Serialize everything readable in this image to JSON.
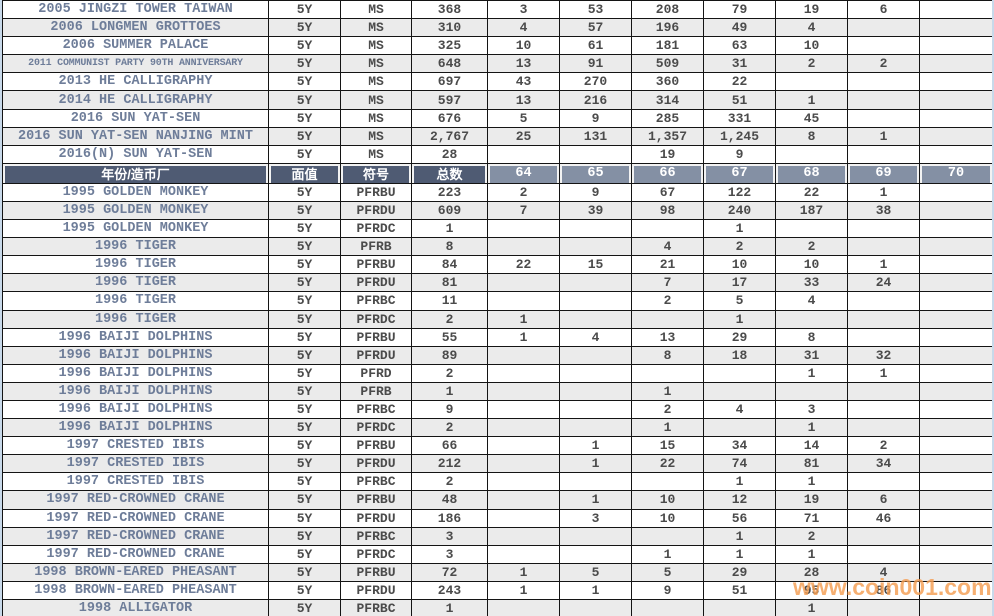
{
  "colors": {
    "header_dark_bg": "#4f5b73",
    "header_grade_bg": "#8490a4",
    "row_alt_bg": "#ebebeb",
    "name_text": "#6e7d99",
    "number_text": "#4b4b4b",
    "border": "#141414",
    "edge_strip": "#c8d9ea",
    "watermark_color": "#f59e53"
  },
  "watermark": {
    "text": "www.coin001.com"
  },
  "table": {
    "columns": [
      "年份/造币厂",
      "面值",
      "符号",
      "总数",
      "64",
      "65",
      "66",
      "67",
      "68",
      "69",
      "70"
    ],
    "top_rows": [
      {
        "name": "2005 JINGZI TOWER TAIWAN",
        "denomination": "5Y",
        "symbol": "MS",
        "total": "368",
        "grades": [
          "3",
          "53",
          "208",
          "79",
          "19",
          "6",
          ""
        ]
      },
      {
        "name": "2006 LONGMEN GROTTOES",
        "denomination": "5Y",
        "symbol": "MS",
        "total": "310",
        "grades": [
          "4",
          "57",
          "196",
          "49",
          "4",
          "",
          ""
        ]
      },
      {
        "name": "2006 SUMMER PALACE",
        "denomination": "5Y",
        "symbol": "MS",
        "total": "325",
        "grades": [
          "10",
          "61",
          "181",
          "63",
          "10",
          "",
          ""
        ]
      },
      {
        "name": "2011 COMMUNIST PARTY 90TH ANNIVERSARY",
        "denomination": "5Y",
        "symbol": "MS",
        "total": "648",
        "grades": [
          "13",
          "91",
          "509",
          "31",
          "2",
          "2",
          ""
        ]
      },
      {
        "name": "2013 HE CALLIGRAPHY",
        "denomination": "5Y",
        "symbol": "MS",
        "total": "697",
        "grades": [
          "43",
          "270",
          "360",
          "22",
          "",
          "",
          ""
        ]
      },
      {
        "name": "2014 HE CALLIGRAPHY",
        "denomination": "5Y",
        "symbol": "MS",
        "total": "597",
        "grades": [
          "13",
          "216",
          "314",
          "51",
          "1",
          "",
          ""
        ]
      },
      {
        "name": "2016 SUN YAT-SEN",
        "denomination": "5Y",
        "symbol": "MS",
        "total": "676",
        "grades": [
          "5",
          "9",
          "285",
          "331",
          "45",
          "",
          ""
        ]
      },
      {
        "name": "2016 SUN YAT-SEN NANJING MINT",
        "denomination": "5Y",
        "symbol": "MS",
        "total": "2,767",
        "grades": [
          "25",
          "131",
          "1,357",
          "1,245",
          "8",
          "1",
          ""
        ]
      },
      {
        "name": "2016(N) SUN YAT-SEN",
        "denomination": "5Y",
        "symbol": "MS",
        "total": "28",
        "grades": [
          "",
          "",
          "19",
          "9",
          "",
          "",
          ""
        ]
      }
    ],
    "body_rows": [
      {
        "name": "1995 GOLDEN MONKEY",
        "denomination": "5Y",
        "symbol": "PFRBU",
        "total": "223",
        "grades": [
          "2",
          "9",
          "67",
          "122",
          "22",
          "1",
          ""
        ]
      },
      {
        "name": "1995 GOLDEN MONKEY",
        "denomination": "5Y",
        "symbol": "PFRDU",
        "total": "609",
        "grades": [
          "7",
          "39",
          "98",
          "240",
          "187",
          "38",
          ""
        ]
      },
      {
        "name": "1995 GOLDEN MONKEY",
        "denomination": "5Y",
        "symbol": "PFRDC",
        "total": "1",
        "grades": [
          "",
          "",
          "",
          "1",
          "",
          "",
          ""
        ]
      },
      {
        "name": "1996 TIGER",
        "denomination": "5Y",
        "symbol": "PFRB",
        "total": "8",
        "grades": [
          "",
          "",
          "4",
          "2",
          "2",
          "",
          ""
        ]
      },
      {
        "name": "1996 TIGER",
        "denomination": "5Y",
        "symbol": "PFRBU",
        "total": "84",
        "grades": [
          "22",
          "15",
          "21",
          "10",
          "10",
          "1",
          ""
        ]
      },
      {
        "name": "1996 TIGER",
        "denomination": "5Y",
        "symbol": "PFRDU",
        "total": "81",
        "grades": [
          "",
          "",
          "7",
          "17",
          "33",
          "24",
          ""
        ]
      },
      {
        "name": "1996 TIGER",
        "denomination": "5Y",
        "symbol": "PFRBC",
        "total": "11",
        "grades": [
          "",
          "",
          "2",
          "5",
          "4",
          "",
          ""
        ]
      },
      {
        "name": "1996 TIGER",
        "denomination": "5Y",
        "symbol": "PFRDC",
        "total": "2",
        "grades": [
          "1",
          "",
          "",
          "1",
          "",
          "",
          ""
        ]
      },
      {
        "name": "1996 BAIJI DOLPHINS",
        "denomination": "5Y",
        "symbol": "PFRBU",
        "total": "55",
        "grades": [
          "1",
          "4",
          "13",
          "29",
          "8",
          "",
          ""
        ]
      },
      {
        "name": "1996 BAIJI DOLPHINS",
        "denomination": "5Y",
        "symbol": "PFRDU",
        "total": "89",
        "grades": [
          "",
          "",
          "8",
          "18",
          "31",
          "32",
          ""
        ]
      },
      {
        "name": "1996 BAIJI DOLPHINS",
        "denomination": "5Y",
        "symbol": "PFRD",
        "total": "2",
        "grades": [
          "",
          "",
          "",
          "",
          "1",
          "1",
          ""
        ]
      },
      {
        "name": "1996 BAIJI DOLPHINS",
        "denomination": "5Y",
        "symbol": "PFRB",
        "total": "1",
        "grades": [
          "",
          "",
          "1",
          "",
          "",
          "",
          ""
        ]
      },
      {
        "name": "1996 BAIJI DOLPHINS",
        "denomination": "5Y",
        "symbol": "PFRBC",
        "total": "9",
        "grades": [
          "",
          "",
          "2",
          "4",
          "3",
          "",
          ""
        ]
      },
      {
        "name": "1996 BAIJI DOLPHINS",
        "denomination": "5Y",
        "symbol": "PFRDC",
        "total": "2",
        "grades": [
          "",
          "",
          "1",
          "",
          "1",
          "",
          ""
        ]
      },
      {
        "name": "1997 CRESTED IBIS",
        "denomination": "5Y",
        "symbol": "PFRBU",
        "total": "66",
        "grades": [
          "",
          "1",
          "15",
          "34",
          "14",
          "2",
          ""
        ]
      },
      {
        "name": "1997 CRESTED IBIS",
        "denomination": "5Y",
        "symbol": "PFRDU",
        "total": "212",
        "grades": [
          "",
          "1",
          "22",
          "74",
          "81",
          "34",
          ""
        ]
      },
      {
        "name": "1997 CRESTED IBIS",
        "denomination": "5Y",
        "symbol": "PFRBC",
        "total": "2",
        "grades": [
          "",
          "",
          "",
          "1",
          "1",
          "",
          ""
        ]
      },
      {
        "name": "1997 RED-CROWNED CRANE",
        "denomination": "5Y",
        "symbol": "PFRBU",
        "total": "48",
        "grades": [
          "",
          "1",
          "10",
          "12",
          "19",
          "6",
          ""
        ]
      },
      {
        "name": "1997 RED-CROWNED CRANE",
        "denomination": "5Y",
        "symbol": "PFRDU",
        "total": "186",
        "grades": [
          "",
          "3",
          "10",
          "56",
          "71",
          "46",
          ""
        ]
      },
      {
        "name": "1997 RED-CROWNED CRANE",
        "denomination": "5Y",
        "symbol": "PFRBC",
        "total": "3",
        "grades": [
          "",
          "",
          "",
          "1",
          "2",
          "",
          ""
        ]
      },
      {
        "name": "1997 RED-CROWNED CRANE",
        "denomination": "5Y",
        "symbol": "PFRDC",
        "total": "3",
        "grades": [
          "",
          "",
          "1",
          "1",
          "1",
          "",
          ""
        ]
      },
      {
        "name": "1998 BROWN-EARED PHEASANT",
        "denomination": "5Y",
        "symbol": "PFRBU",
        "total": "72",
        "grades": [
          "1",
          "5",
          "5",
          "29",
          "28",
          "4",
          ""
        ]
      },
      {
        "name": "1998 BROWN-EARED PHEASANT",
        "denomination": "5Y",
        "symbol": "PFRDU",
        "total": "243",
        "grades": [
          "1",
          "1",
          "9",
          "51",
          "95",
          "86",
          ""
        ]
      },
      {
        "name": "1998 ALLIGATOR",
        "denomination": "5Y",
        "symbol": "PFRBC",
        "total": "1",
        "grades": [
          "",
          "",
          "",
          "",
          "1",
          "",
          ""
        ]
      }
    ]
  }
}
